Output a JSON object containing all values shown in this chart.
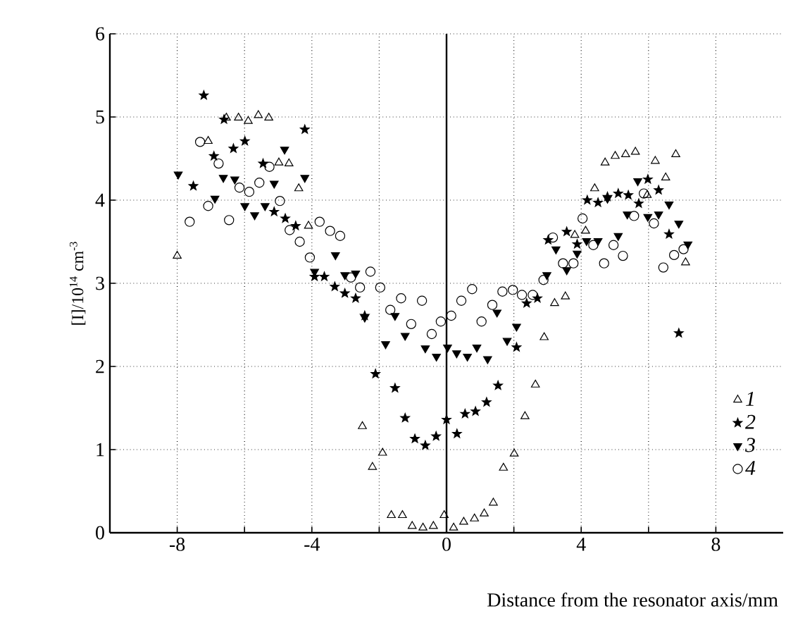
{
  "chart_data": {
    "type": "scatter",
    "xlabel": "Distance from the resonator axis/mm",
    "ylabel": "[I]/10$^{14}$ cm$^{-3}$",
    "xlim": [
      -10,
      10
    ],
    "ylim": [
      0,
      6
    ],
    "xticks": [
      -8,
      {
        "value": -6,
        "label": null
      },
      -4,
      {
        "value": -2,
        "label": null
      },
      0,
      {
        "value": 2,
        "label": null
      },
      4,
      {
        "value": 6,
        "label": null
      },
      8
    ],
    "yticks": [
      0,
      1,
      2,
      3,
      4,
      5,
      6
    ],
    "grid": true,
    "legend": "bottom right",
    "ref_lines": [
      {
        "axis": "x",
        "value": 0,
        "color": "#000000",
        "line_style": "solid"
      }
    ],
    "series": [
      {
        "name": "1",
        "color": "#000000",
        "marker": "triangle",
        "x": [
          -8,
          -7.08,
          -6.54,
          -6.18,
          -5.89,
          -5.59,
          -5.28,
          -4.98,
          -4.68,
          -4.39,
          -4.1,
          -2.5,
          -2.2,
          -1.9,
          -1.64,
          -1.31,
          -1.02,
          -0.7,
          -0.39,
          -0.07,
          0.21,
          0.51,
          0.83,
          1.12,
          1.39,
          1.69,
          2.01,
          2.33,
          2.64,
          2.9,
          3.21,
          3.53,
          3.81,
          4.13,
          4.4,
          4.71,
          5.01,
          5.32,
          5.61,
          5.96,
          6.2,
          6.51,
          6.81,
          7.1
        ],
        "values": [
          3.33,
          4.71,
          4.99,
          4.99,
          4.95,
          5.02,
          4.99,
          4.45,
          4.44,
          4.14,
          3.69,
          1.28,
          0.79,
          0.96,
          0.21,
          0.21,
          0.08,
          0.06,
          0.08,
          0.21,
          0.06,
          0.13,
          0.17,
          0.23,
          0.36,
          0.78,
          0.95,
          1.4,
          1.78,
          2.35,
          2.76,
          2.84,
          3.58,
          3.63,
          4.14,
          4.45,
          4.53,
          4.55,
          4.58,
          4.06,
          4.47,
          4.27,
          4.55,
          3.25
        ]
      },
      {
        "name": "2",
        "color": "#000000",
        "marker": "star",
        "x": [
          -7.52,
          -7.21,
          -6.91,
          -6.61,
          -6.33,
          -5.99,
          -5.45,
          -5.12,
          -4.79,
          -4.48,
          -4.21,
          -3.92,
          -3.63,
          -3.32,
          -3.02,
          -2.7,
          -2.43,
          -2.11,
          -1.53,
          -1.23,
          -0.94,
          -0.63,
          -0.31,
          0,
          0.31,
          0.55,
          0.86,
          1.19,
          1.53,
          2.08,
          2.38,
          2.7,
          3.02,
          3.57,
          3.88,
          4.18,
          4.5,
          4.78,
          5.1,
          5.4,
          5.71,
          5.98,
          6.3,
          6.61,
          6.9
        ],
        "values": [
          4.17,
          5.26,
          4.53,
          4.97,
          4.62,
          4.71,
          4.44,
          3.86,
          3.78,
          3.69,
          4.85,
          3.08,
          3.08,
          2.96,
          2.88,
          2.82,
          2.61,
          1.91,
          1.74,
          1.38,
          1.13,
          1.05,
          1.16,
          1.36,
          1.19,
          1.43,
          1.46,
          1.57,
          1.77,
          2.23,
          2.76,
          2.82,
          3.52,
          3.62,
          3.47,
          4.0,
          3.97,
          4.04,
          4.08,
          4.06,
          3.96,
          4.25,
          4.12,
          3.59,
          2.4
        ]
      },
      {
        "name": "3",
        "color": "#000000",
        "marker": "triangle-down",
        "x": [
          -7.97,
          -6.88,
          -6.63,
          -6.29,
          -5.99,
          -5.7,
          -5.39,
          -5.12,
          -4.81,
          -4.21,
          -3.92,
          -3.3,
          -3.02,
          -2.7,
          -2.43,
          -1.81,
          -1.53,
          -1.23,
          -0.63,
          -0.3,
          0.03,
          0.3,
          0.62,
          0.9,
          1.22,
          1.5,
          1.8,
          2.08,
          2.98,
          3.25,
          3.57,
          3.88,
          4.16,
          4.5,
          4.78,
          5.1,
          5.37,
          5.68,
          5.98,
          6.3,
          6.61,
          6.9,
          7.17
        ],
        "values": [
          4.31,
          4.02,
          4.27,
          4.25,
          3.93,
          3.82,
          3.93,
          4.2,
          4.61,
          4.27,
          3.14,
          3.34,
          3.1,
          3.12,
          2.59,
          2.27,
          2.61,
          2.37,
          2.22,
          2.12,
          2.23,
          2.16,
          2.12,
          2.23,
          2.09,
          2.65,
          2.31,
          2.48,
          3.1,
          3.41,
          3.16,
          3.36,
          3.51,
          3.51,
          4.02,
          3.57,
          3.83,
          4.23,
          3.8,
          3.83,
          3.95,
          3.72,
          3.47
        ]
      },
      {
        "name": "4",
        "color": "#000000",
        "marker": "circle",
        "x": [
          -7.63,
          -7.32,
          -7.08,
          -6.77,
          -6.46,
          -6.15,
          -5.86,
          -5.56,
          -5.26,
          -4.95,
          -4.66,
          -4.36,
          -4.06,
          -3.77,
          -3.46,
          -3.16,
          -2.84,
          -2.57,
          -2.26,
          -1.97,
          -1.67,
          -1.35,
          -1.05,
          -0.73,
          -0.44,
          -0.17,
          0.14,
          0.44,
          0.76,
          1.04,
          1.36,
          1.66,
          1.97,
          2.24,
          2.56,
          2.88,
          3.16,
          3.46,
          3.77,
          4.04,
          4.36,
          4.68,
          4.96,
          5.24,
          5.57,
          5.86,
          6.16,
          6.44,
          6.76,
          7.04
        ],
        "values": [
          3.74,
          4.7,
          3.93,
          4.44,
          3.76,
          4.15,
          4.1,
          4.21,
          4.4,
          3.99,
          3.64,
          3.5,
          3.31,
          3.74,
          3.63,
          3.57,
          3.07,
          2.95,
          3.14,
          2.95,
          2.68,
          2.82,
          2.51,
          2.79,
          2.39,
          2.54,
          2.61,
          2.79,
          2.93,
          2.54,
          2.74,
          2.9,
          2.92,
          2.86,
          2.86,
          3.04,
          3.55,
          3.24,
          3.24,
          3.78,
          3.46,
          3.24,
          3.46,
          3.33,
          3.81,
          4.08,
          3.72,
          3.19,
          3.34,
          3.41
        ]
      }
    ]
  }
}
